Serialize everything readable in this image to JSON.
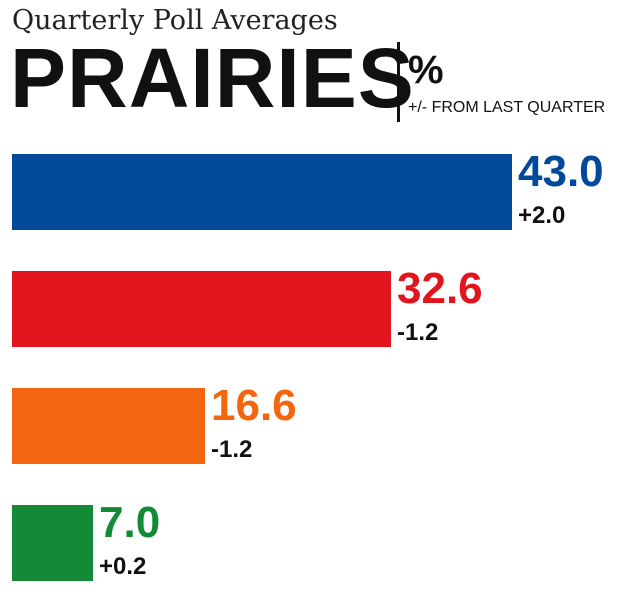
{
  "header": {
    "subtitle": "Quarterly Poll Averages",
    "region": "PRAIRIES",
    "unit": "%",
    "change_caption": "+/- FROM LAST QUARTER"
  },
  "chart_data": {
    "type": "bar",
    "orientation": "horizontal",
    "title": "PRAIRIES",
    "subtitle": "Quarterly Poll Averages",
    "unit": "%",
    "xlim": [
      0,
      43.0
    ],
    "grid": false,
    "values": [
      43.0,
      32.6,
      16.6,
      7.0
    ],
    "changes": [
      "+2.0",
      "-1.2",
      "-1.2",
      "+0.2"
    ],
    "value_labels": [
      "43.0",
      "32.6",
      "16.6",
      "7.0"
    ],
    "colors": [
      "#02489b",
      "#e2151f",
      "#f4650f",
      "#148a37"
    ]
  }
}
